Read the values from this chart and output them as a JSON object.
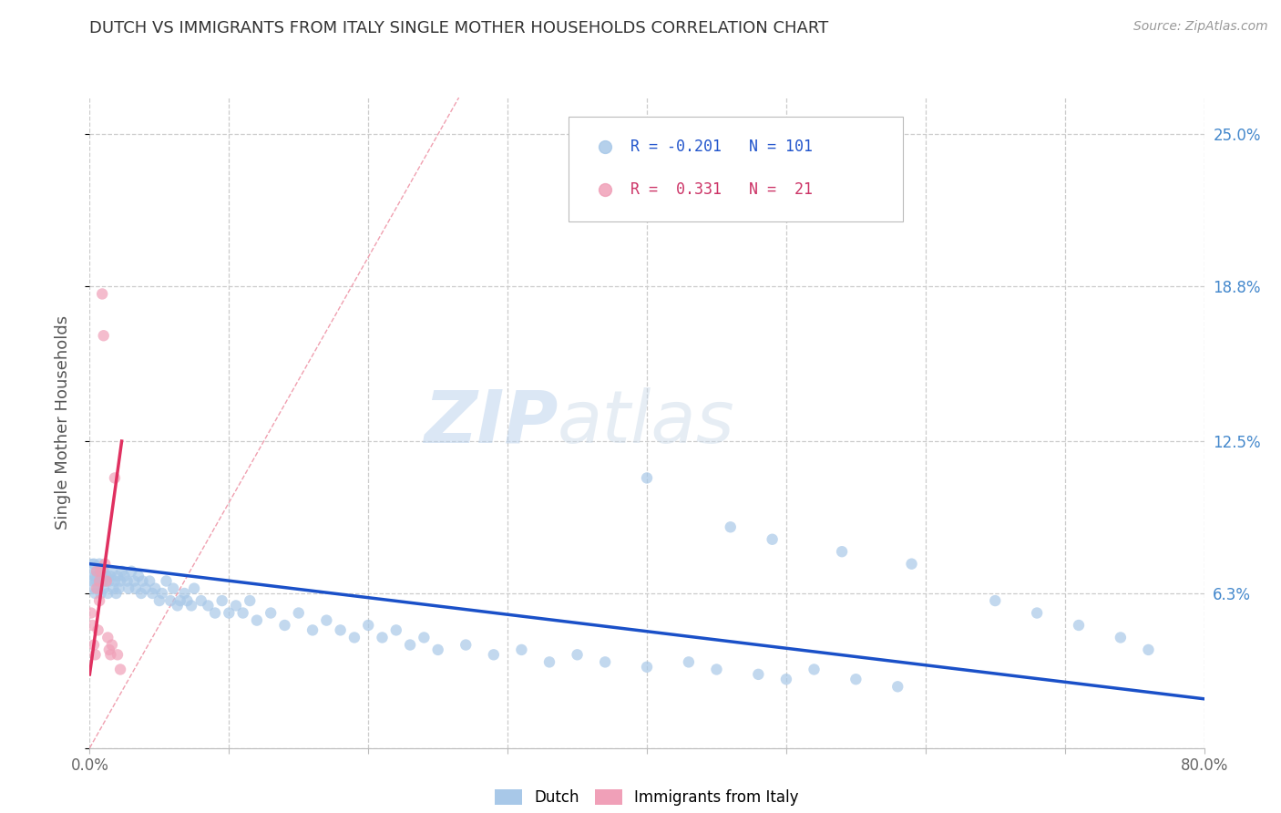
{
  "title": "DUTCH VS IMMIGRANTS FROM ITALY SINGLE MOTHER HOUSEHOLDS CORRELATION CHART",
  "source": "Source: ZipAtlas.com",
  "ylabel": "Single Mother Households",
  "xlim": [
    0.0,
    0.8
  ],
  "ylim": [
    0.0,
    0.265
  ],
  "xticks": [
    0.0,
    0.1,
    0.2,
    0.3,
    0.4,
    0.5,
    0.6,
    0.7,
    0.8
  ],
  "xticklabels": [
    "0.0%",
    "",
    "",
    "",
    "",
    "",
    "",
    "",
    "80.0%"
  ],
  "ytick_positions": [
    0.0,
    0.063,
    0.125,
    0.188,
    0.25
  ],
  "ytick_labels_right": [
    "",
    "6.3%",
    "12.5%",
    "18.8%",
    "25.0%"
  ],
  "dutch_color": "#a8c8e8",
  "italy_color": "#f0a0b8",
  "dutch_line_color": "#1a50c8",
  "italy_line_color": "#e03060",
  "diag_line_color": "#e8a0b0",
  "legend_r_dutch": "-0.201",
  "legend_n_dutch": "101",
  "legend_r_italy": "0.331",
  "legend_n_italy": "21",
  "watermark": "ZIPatlas",
  "background_color": "#ffffff",
  "dutch_scatter_x": [
    0.001,
    0.002,
    0.003,
    0.003,
    0.004,
    0.004,
    0.005,
    0.005,
    0.006,
    0.006,
    0.007,
    0.007,
    0.008,
    0.008,
    0.009,
    0.01,
    0.01,
    0.011,
    0.012,
    0.013,
    0.014,
    0.015,
    0.016,
    0.017,
    0.018,
    0.019,
    0.02,
    0.021,
    0.022,
    0.023,
    0.025,
    0.027,
    0.028,
    0.03,
    0.032,
    0.033,
    0.035,
    0.037,
    0.038,
    0.04,
    0.043,
    0.045,
    0.047,
    0.05,
    0.052,
    0.055,
    0.058,
    0.06,
    0.063,
    0.065,
    0.068,
    0.07,
    0.073,
    0.075,
    0.08,
    0.085,
    0.09,
    0.095,
    0.1,
    0.105,
    0.11,
    0.115,
    0.12,
    0.13,
    0.14,
    0.15,
    0.16,
    0.17,
    0.18,
    0.19,
    0.2,
    0.21,
    0.22,
    0.23,
    0.24,
    0.25,
    0.27,
    0.29,
    0.31,
    0.33,
    0.35,
    0.37,
    0.4,
    0.43,
    0.45,
    0.48,
    0.5,
    0.52,
    0.55,
    0.58,
    0.4,
    0.46,
    0.49,
    0.54,
    0.59,
    0.65,
    0.68,
    0.71,
    0.74,
    0.76,
    0.38
  ],
  "dutch_scatter_y": [
    0.072,
    0.068,
    0.075,
    0.065,
    0.07,
    0.063,
    0.068,
    0.072,
    0.065,
    0.07,
    0.068,
    0.075,
    0.063,
    0.07,
    0.068,
    0.072,
    0.065,
    0.068,
    0.07,
    0.063,
    0.068,
    0.07,
    0.072,
    0.065,
    0.068,
    0.063,
    0.07,
    0.065,
    0.068,
    0.072,
    0.07,
    0.068,
    0.065,
    0.072,
    0.068,
    0.065,
    0.07,
    0.063,
    0.068,
    0.065,
    0.068,
    0.063,
    0.065,
    0.06,
    0.063,
    0.068,
    0.06,
    0.065,
    0.058,
    0.06,
    0.063,
    0.06,
    0.058,
    0.065,
    0.06,
    0.058,
    0.055,
    0.06,
    0.055,
    0.058,
    0.055,
    0.06,
    0.052,
    0.055,
    0.05,
    0.055,
    0.048,
    0.052,
    0.048,
    0.045,
    0.05,
    0.045,
    0.048,
    0.042,
    0.045,
    0.04,
    0.042,
    0.038,
    0.04,
    0.035,
    0.038,
    0.035,
    0.033,
    0.035,
    0.032,
    0.03,
    0.028,
    0.032,
    0.028,
    0.025,
    0.11,
    0.09,
    0.085,
    0.08,
    0.075,
    0.06,
    0.055,
    0.05,
    0.045,
    0.04,
    0.235
  ],
  "dutch_scatter_sizes": [
    400,
    80,
    80,
    80,
    80,
    80,
    80,
    80,
    80,
    80,
    80,
    80,
    80,
    80,
    80,
    80,
    80,
    80,
    80,
    80,
    80,
    80,
    80,
    80,
    80,
    80,
    80,
    80,
    80,
    80,
    80,
    80,
    80,
    80,
    80,
    80,
    80,
    80,
    80,
    80,
    80,
    80,
    80,
    80,
    80,
    80,
    80,
    80,
    80,
    80,
    80,
    80,
    80,
    80,
    80,
    80,
    80,
    80,
    80,
    80,
    80,
    80,
    80,
    80,
    80,
    80,
    80,
    80,
    80,
    80,
    80,
    80,
    80,
    80,
    80,
    80,
    80,
    80,
    80,
    80,
    80,
    80,
    80,
    80,
    80,
    80,
    80,
    80,
    80,
    80,
    80,
    80,
    80,
    80,
    80,
    80,
    80,
    80,
    80,
    80,
    80
  ],
  "italy_scatter_x": [
    0.001,
    0.002,
    0.003,
    0.004,
    0.005,
    0.005,
    0.006,
    0.007,
    0.007,
    0.008,
    0.009,
    0.01,
    0.011,
    0.012,
    0.013,
    0.014,
    0.015,
    0.016,
    0.018,
    0.02,
    0.022
  ],
  "italy_scatter_y": [
    0.055,
    0.05,
    0.042,
    0.038,
    0.072,
    0.065,
    0.048,
    0.06,
    0.068,
    0.072,
    0.185,
    0.168,
    0.075,
    0.068,
    0.045,
    0.04,
    0.038,
    0.042,
    0.11,
    0.038,
    0.032
  ],
  "italy_scatter_sizes": [
    80,
    80,
    80,
    80,
    80,
    80,
    80,
    80,
    80,
    80,
    80,
    80,
    80,
    80,
    80,
    80,
    80,
    80,
    80,
    80,
    80
  ],
  "dutch_trend_x": [
    0.0,
    0.8
  ],
  "dutch_trend_y": [
    0.075,
    0.02
  ],
  "italy_trend_x": [
    0.0,
    0.023
  ],
  "italy_trend_y": [
    0.03,
    0.125
  ]
}
